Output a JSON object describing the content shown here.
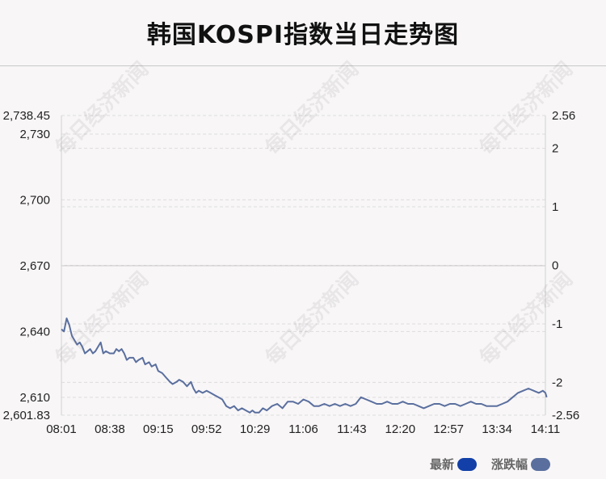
{
  "chart_data": {
    "type": "line",
    "title": "韩国KOSPI指数当日走势图",
    "x_ticks": [
      "08:01",
      "08:38",
      "09:15",
      "09:52",
      "10:29",
      "11:06",
      "11:43",
      "12:20",
      "12:57",
      "13:34",
      "14:11"
    ],
    "y_left_ticks": [
      "2,738.45",
      "2,730",
      "2,700",
      "2,670",
      "2,640",
      "2,610",
      "2,601.83"
    ],
    "y_left_tick_values": [
      2738.45,
      2730,
      2700,
      2670,
      2640,
      2610,
      2601.83
    ],
    "y_right_ticks": [
      "2.56",
      "2",
      "1",
      "0",
      "-1",
      "-2",
      "-2.56"
    ],
    "ylim_left": [
      2601.83,
      2738.45
    ],
    "ylim_right": [
      -2.56,
      2.56
    ],
    "baseline": 2670,
    "grid": true,
    "series": [
      {
        "name": "最新",
        "color": "#5a6f9e",
        "points": [
          [
            "08:01",
            2641
          ],
          [
            "08:03",
            2640
          ],
          [
            "08:05",
            2646
          ],
          [
            "08:07",
            2643
          ],
          [
            "08:09",
            2638
          ],
          [
            "08:11",
            2636
          ],
          [
            "08:13",
            2634
          ],
          [
            "08:15",
            2635
          ],
          [
            "08:17",
            2633
          ],
          [
            "08:19",
            2630
          ],
          [
            "08:21",
            2631
          ],
          [
            "08:23",
            2632
          ],
          [
            "08:25",
            2630
          ],
          [
            "08:27",
            2631
          ],
          [
            "08:29",
            2633
          ],
          [
            "08:31",
            2635
          ],
          [
            "08:33",
            2630
          ],
          [
            "08:35",
            2631
          ],
          [
            "08:38",
            2630
          ],
          [
            "08:41",
            2630
          ],
          [
            "08:43",
            2632
          ],
          [
            "08:45",
            2631
          ],
          [
            "08:47",
            2632
          ],
          [
            "08:49",
            2630
          ],
          [
            "08:51",
            2627
          ],
          [
            "08:53",
            2628
          ],
          [
            "08:56",
            2628
          ],
          [
            "08:58",
            2626
          ],
          [
            "09:00",
            2627
          ],
          [
            "09:03",
            2628
          ],
          [
            "09:05",
            2625
          ],
          [
            "09:08",
            2626
          ],
          [
            "09:10",
            2624
          ],
          [
            "09:13",
            2625
          ],
          [
            "09:15",
            2622
          ],
          [
            "09:18",
            2621
          ],
          [
            "09:21",
            2619
          ],
          [
            "09:24",
            2617
          ],
          [
            "09:26",
            2616
          ],
          [
            "09:29",
            2617
          ],
          [
            "09:31",
            2618
          ],
          [
            "09:34",
            2617
          ],
          [
            "09:37",
            2615
          ],
          [
            "09:40",
            2617
          ],
          [
            "09:42",
            2614
          ],
          [
            "09:44",
            2612
          ],
          [
            "09:46",
            2613
          ],
          [
            "09:49",
            2612
          ],
          [
            "09:52",
            2613
          ],
          [
            "09:55",
            2612
          ],
          [
            "09:58",
            2611
          ],
          [
            "10:01",
            2610
          ],
          [
            "10:04",
            2609
          ],
          [
            "10:07",
            2606
          ],
          [
            "10:10",
            2605
          ],
          [
            "10:13",
            2606
          ],
          [
            "10:16",
            2604
          ],
          [
            "10:19",
            2605
          ],
          [
            "10:22",
            2604
          ],
          [
            "10:25",
            2603
          ],
          [
            "10:27",
            2604
          ],
          [
            "10:29",
            2603
          ],
          [
            "10:32",
            2603
          ],
          [
            "10:35",
            2605
          ],
          [
            "10:38",
            2604
          ],
          [
            "10:42",
            2606
          ],
          [
            "10:46",
            2607
          ],
          [
            "10:50",
            2605
          ],
          [
            "10:54",
            2608
          ],
          [
            "10:58",
            2608
          ],
          [
            "11:02",
            2607
          ],
          [
            "11:06",
            2609
          ],
          [
            "11:10",
            2608
          ],
          [
            "11:14",
            2606
          ],
          [
            "11:18",
            2606
          ],
          [
            "11:22",
            2607
          ],
          [
            "11:26",
            2606
          ],
          [
            "11:30",
            2607
          ],
          [
            "11:34",
            2606
          ],
          [
            "11:38",
            2607
          ],
          [
            "11:42",
            2606
          ],
          [
            "11:46",
            2607
          ],
          [
            "11:50",
            2610
          ],
          [
            "11:54",
            2609
          ],
          [
            "11:58",
            2608
          ],
          [
            "12:02",
            2607
          ],
          [
            "12:06",
            2607
          ],
          [
            "12:10",
            2608
          ],
          [
            "12:14",
            2607
          ],
          [
            "12:18",
            2607
          ],
          [
            "12:22",
            2608
          ],
          [
            "12:26",
            2607
          ],
          [
            "12:30",
            2607
          ],
          [
            "12:34",
            2606
          ],
          [
            "12:38",
            2605
          ],
          [
            "12:42",
            2606
          ],
          [
            "12:46",
            2607
          ],
          [
            "12:50",
            2607
          ],
          [
            "12:54",
            2606
          ],
          [
            "12:58",
            2607
          ],
          [
            "13:02",
            2607
          ],
          [
            "13:06",
            2606
          ],
          [
            "13:10",
            2607
          ],
          [
            "13:14",
            2608
          ],
          [
            "13:18",
            2607
          ],
          [
            "13:22",
            2607
          ],
          [
            "13:26",
            2606
          ],
          [
            "13:30",
            2606
          ],
          [
            "13:34",
            2606
          ],
          [
            "13:38",
            2607
          ],
          [
            "13:42",
            2608
          ],
          [
            "13:46",
            2610
          ],
          [
            "13:50",
            2612
          ],
          [
            "13:54",
            2613
          ],
          [
            "13:58",
            2614
          ],
          [
            "14:02",
            2613
          ],
          [
            "14:06",
            2612
          ],
          [
            "14:09",
            2613
          ],
          [
            "14:11",
            2612
          ],
          [
            "14:12",
            2610
          ]
        ]
      }
    ],
    "legend": [
      {
        "label": "最新",
        "color": "#1240a8"
      },
      {
        "label": "涨跌幅",
        "color": "#5a6f9e"
      }
    ],
    "legend_position": "bottom-right"
  },
  "watermark": "每日经济新闻"
}
